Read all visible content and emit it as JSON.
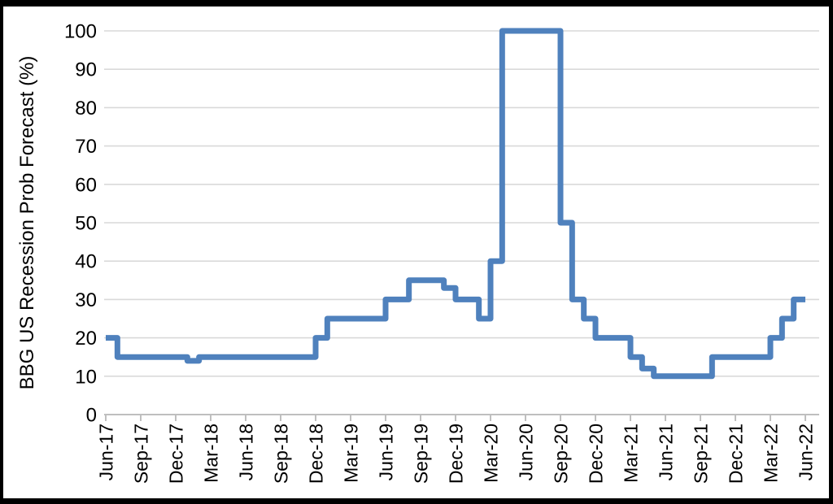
{
  "frame": {
    "background": "#ffffff",
    "border_color": "#000000"
  },
  "chart_data": {
    "type": "line",
    "line_style": "step-post",
    "title": "",
    "xlabel": "",
    "ylabel": "BBG US Recession Prob Forecast (%)",
    "ylim": [
      0,
      100
    ],
    "y_ticks": [
      0,
      10,
      20,
      30,
      40,
      50,
      60,
      70,
      80,
      90,
      100
    ],
    "x_tick_labels": [
      "Jun-17",
      "Sep-17",
      "Dec-17",
      "Mar-18",
      "Jun-18",
      "Sep-18",
      "Dec-18",
      "Mar-19",
      "Jun-19",
      "Sep-19",
      "Dec-19",
      "Mar-20",
      "Jun-20",
      "Sep-20",
      "Dec-20",
      "Mar-21",
      "Jun-21",
      "Sep-21",
      "Dec-21",
      "Mar-22",
      "Jun-22"
    ],
    "x_tick_interval_months": 3,
    "grid": "horizontal",
    "legend": "none",
    "colors": {
      "line": "#4F81BD",
      "gridline": "#D9D9D9",
      "axis": "#BFBFBF",
      "text": "#000000"
    },
    "x": [
      "Jun-17",
      "Jul-17",
      "Aug-17",
      "Sep-17",
      "Oct-17",
      "Nov-17",
      "Dec-17",
      "Jan-18",
      "Feb-18",
      "Mar-18",
      "Apr-18",
      "May-18",
      "Jun-18",
      "Jul-18",
      "Aug-18",
      "Sep-18",
      "Oct-18",
      "Nov-18",
      "Dec-18",
      "Jan-19",
      "Feb-19",
      "Mar-19",
      "Apr-19",
      "May-19",
      "Jun-19",
      "Jul-19",
      "Aug-19",
      "Sep-19",
      "Oct-19",
      "Nov-19",
      "Dec-19",
      "Jan-20",
      "Feb-20",
      "Mar-20",
      "Apr-20",
      "May-20",
      "Jun-20",
      "Jul-20",
      "Aug-20",
      "Sep-20",
      "Oct-20",
      "Nov-20",
      "Dec-20",
      "Jan-21",
      "Feb-21",
      "Mar-21",
      "Apr-21",
      "May-21",
      "Jun-21",
      "Jul-21",
      "Aug-21",
      "Sep-21",
      "Oct-21",
      "Nov-21",
      "Dec-21",
      "Jan-22",
      "Feb-22",
      "Mar-22",
      "Apr-22",
      "May-22",
      "Jun-22"
    ],
    "series": [
      {
        "name": "BBG US Recession Prob Forecast (%)",
        "color": "#4F81BD",
        "values": [
          20,
          15,
          15,
          15,
          15,
          15,
          15,
          14,
          15,
          15,
          15,
          15,
          15,
          15,
          15,
          15,
          15,
          15,
          20,
          25,
          25,
          25,
          25,
          25,
          30,
          30,
          35,
          35,
          35,
          33,
          30,
          30,
          25,
          40,
          100,
          100,
          100,
          100,
          100,
          50,
          30,
          25,
          20,
          20,
          20,
          15,
          12,
          10,
          10,
          10,
          10,
          10,
          15,
          15,
          15,
          15,
          15,
          20,
          25,
          30,
          30
        ]
      }
    ]
  }
}
